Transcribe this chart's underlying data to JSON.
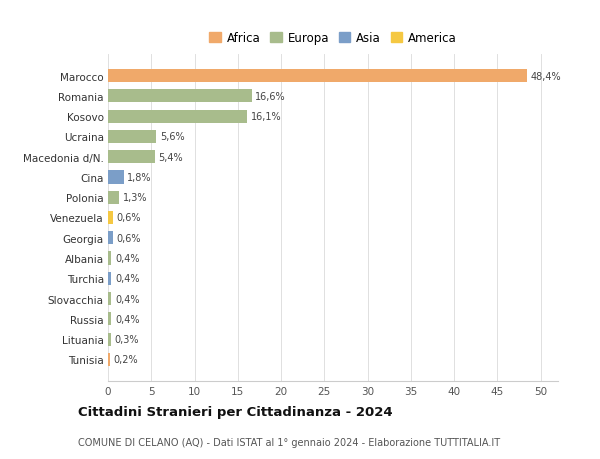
{
  "categories": [
    "Tunisia",
    "Lituania",
    "Russia",
    "Slovacchia",
    "Turchia",
    "Albania",
    "Georgia",
    "Venezuela",
    "Polonia",
    "Cina",
    "Macedonia d/N.",
    "Ucraina",
    "Kosovo",
    "Romania",
    "Marocco"
  ],
  "values": [
    0.2,
    0.3,
    0.4,
    0.4,
    0.4,
    0.4,
    0.6,
    0.6,
    1.3,
    1.8,
    5.4,
    5.6,
    16.1,
    16.6,
    48.4
  ],
  "labels": [
    "0,2%",
    "0,3%",
    "0,4%",
    "0,4%",
    "0,4%",
    "0,4%",
    "0,6%",
    "0,6%",
    "1,3%",
    "1,8%",
    "5,4%",
    "5,6%",
    "16,1%",
    "16,6%",
    "48,4%"
  ],
  "bar_colors": [
    "#F0A96A",
    "#A8BC8C",
    "#A8BC8C",
    "#A8BC8C",
    "#7B9EC8",
    "#A8BC8C",
    "#7B9EC8",
    "#F5C842",
    "#A8BC8C",
    "#7B9EC8",
    "#A8BC8C",
    "#A8BC8C",
    "#A8BC8C",
    "#A8BC8C",
    "#F0A96A"
  ],
  "title": "Cittadini Stranieri per Cittadinanza - 2024",
  "subtitle": "COMUNE DI CELANO (AQ) - Dati ISTAT al 1° gennaio 2024 - Elaborazione TUTTITALIA.IT",
  "xlim": [
    0,
    52
  ],
  "xticks": [
    0,
    5,
    10,
    15,
    20,
    25,
    30,
    35,
    40,
    45,
    50
  ],
  "legend_labels": [
    "Africa",
    "Europa",
    "Asia",
    "America"
  ],
  "legend_colors": [
    "#F0A96A",
    "#A8BC8C",
    "#7B9EC8",
    "#F5C842"
  ],
  "background_color": "#ffffff",
  "grid_color": "#e0e0e0"
}
